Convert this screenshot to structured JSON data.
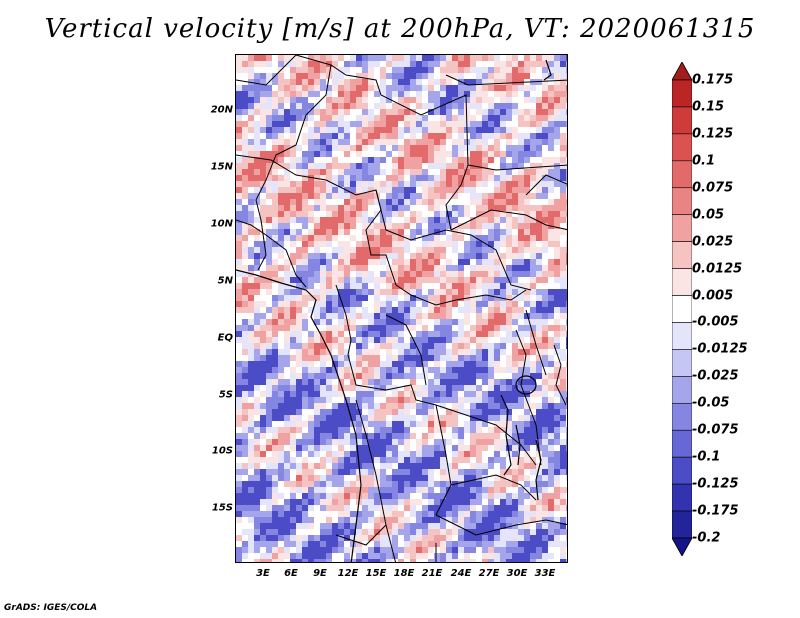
{
  "title": "Vertical velocity [m/s] at 200hPa, VT: 2020061315",
  "footer": "GrADS: IGES/COLA",
  "map": {
    "lat_labels": [
      "20N",
      "15N",
      "10N",
      "5N",
      "EQ",
      "5S",
      "10S",
      "15S"
    ],
    "lon_labels": [
      "3E",
      "6E",
      "9E",
      "12E",
      "15E",
      "18E",
      "21E",
      "24E",
      "27E",
      "30E",
      "33E"
    ]
  },
  "colorbar": {
    "labels": [
      "0.175",
      "0.15",
      "0.125",
      "0.1",
      "0.075",
      "0.05",
      "0.025",
      "0.0125",
      "0.005",
      "-0.005",
      "-0.0125",
      "-0.025",
      "-0.05",
      "-0.075",
      "-0.1",
      "-0.125",
      "-0.175",
      "-0.2"
    ],
    "colors": [
      "#a51c1c",
      "#bb2525",
      "#cf3a3a",
      "#dc5252",
      "#e36a6a",
      "#e98484",
      "#f0a2a2",
      "#f6c3c3",
      "#fbe4e4",
      "#ffffff",
      "#e4e4fb",
      "#c6c6f4",
      "#a5a5ec",
      "#8585e2",
      "#6767d6",
      "#4c4cc6",
      "#3333b0",
      "#23239a",
      "#14148a"
    ]
  }
}
